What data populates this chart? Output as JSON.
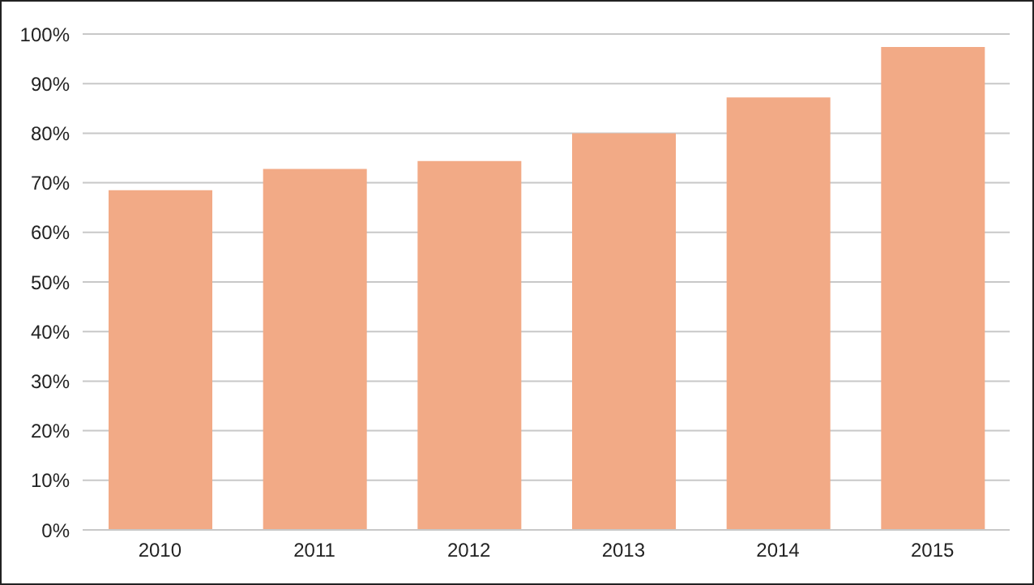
{
  "chart_data": {
    "type": "bar",
    "categories": [
      "2010",
      "2011",
      "2012",
      "2013",
      "2014",
      "2015"
    ],
    "values": [
      68.5,
      72.8,
      74.4,
      80,
      87.2,
      97.4
    ],
    "color": "#f2aa86",
    "ylim": [
      0,
      100
    ],
    "yticks": [
      {
        "value": 0,
        "label": "0%"
      },
      {
        "value": 10,
        "label": "10%"
      },
      {
        "value": 20,
        "label": "20%"
      },
      {
        "value": 30,
        "label": "30%"
      },
      {
        "value": 40,
        "label": "40%"
      },
      {
        "value": 50,
        "label": "50%"
      },
      {
        "value": 60,
        "label": "60%"
      },
      {
        "value": 70,
        "label": "70%"
      },
      {
        "value": 80,
        "label": "80%"
      },
      {
        "value": 90,
        "label": "90%"
      },
      {
        "value": 100,
        "label": "100%"
      }
    ],
    "grid": "y"
  }
}
